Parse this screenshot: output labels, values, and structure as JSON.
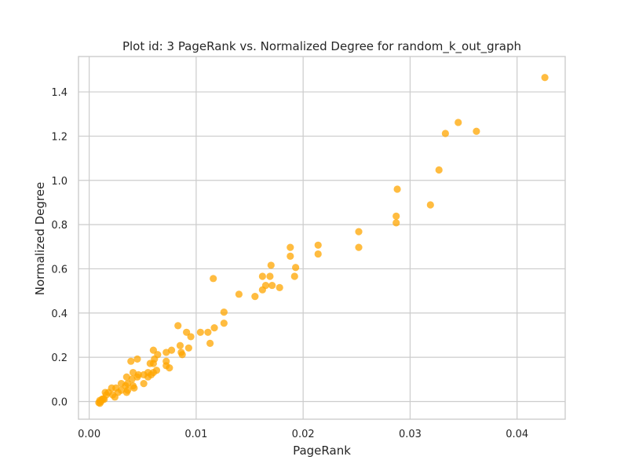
{
  "chart_data": {
    "type": "scatter",
    "title": "Plot id: 3 PageRank vs. Normalized Degree for random_k_out_graph",
    "xlabel": "PageRank",
    "ylabel": "Normalized Degree",
    "xlim": [
      -0.001,
      0.0445
    ],
    "ylim": [
      -0.08,
      1.56
    ],
    "xticks": [
      0.0,
      0.01,
      0.02,
      0.03,
      0.04
    ],
    "xtick_labels": [
      "0.00",
      "0.01",
      "0.02",
      "0.03",
      "0.04"
    ],
    "yticks": [
      0.0,
      0.2,
      0.4,
      0.6,
      0.8,
      1.0,
      1.2,
      1.4
    ],
    "ytick_labels": [
      "0.0",
      "0.2",
      "0.4",
      "0.6",
      "0.8",
      "1.0",
      "1.2",
      "1.4"
    ],
    "grid": true,
    "legend": "none",
    "point_color": "#FFA500",
    "points": [
      [
        0.0426,
        1.465
      ],
      [
        0.0345,
        1.262
      ],
      [
        0.0362,
        1.222
      ],
      [
        0.0333,
        1.212
      ],
      [
        0.0327,
        1.047
      ],
      [
        0.0288,
        0.96
      ],
      [
        0.0319,
        0.889
      ],
      [
        0.0287,
        0.838
      ],
      [
        0.0287,
        0.808
      ],
      [
        0.0252,
        0.768
      ],
      [
        0.0252,
        0.697
      ],
      [
        0.0214,
        0.707
      ],
      [
        0.0214,
        0.667
      ],
      [
        0.0188,
        0.697
      ],
      [
        0.0188,
        0.657
      ],
      [
        0.017,
        0.616
      ],
      [
        0.0193,
        0.606
      ],
      [
        0.0162,
        0.566
      ],
      [
        0.0169,
        0.566
      ],
      [
        0.0192,
        0.566
      ],
      [
        0.0116,
        0.556
      ],
      [
        0.0165,
        0.525
      ],
      [
        0.0171,
        0.525
      ],
      [
        0.0178,
        0.515
      ],
      [
        0.0162,
        0.505
      ],
      [
        0.014,
        0.485
      ],
      [
        0.0155,
        0.475
      ],
      [
        0.0126,
        0.404
      ],
      [
        0.0083,
        0.343
      ],
      [
        0.0126,
        0.354
      ],
      [
        0.0117,
        0.333
      ],
      [
        0.0104,
        0.313
      ],
      [
        0.0111,
        0.313
      ],
      [
        0.0091,
        0.313
      ],
      [
        0.0095,
        0.293
      ],
      [
        0.0113,
        0.263
      ],
      [
        0.0085,
        0.253
      ],
      [
        0.0093,
        0.242
      ],
      [
        0.006,
        0.232
      ],
      [
        0.0086,
        0.222
      ],
      [
        0.0077,
        0.232
      ],
      [
        0.0072,
        0.222
      ],
      [
        0.0064,
        0.212
      ],
      [
        0.0087,
        0.212
      ],
      [
        0.0045,
        0.192
      ],
      [
        0.0039,
        0.182
      ],
      [
        0.0061,
        0.192
      ],
      [
        0.0072,
        0.182
      ],
      [
        0.0057,
        0.172
      ],
      [
        0.006,
        0.172
      ],
      [
        0.0072,
        0.162
      ],
      [
        0.0075,
        0.152
      ],
      [
        0.0063,
        0.141
      ],
      [
        0.006,
        0.131
      ],
      [
        0.0055,
        0.131
      ],
      [
        0.0041,
        0.131
      ],
      [
        0.0046,
        0.121
      ],
      [
        0.0051,
        0.121
      ],
      [
        0.0058,
        0.121
      ],
      [
        0.0035,
        0.111
      ],
      [
        0.0045,
        0.111
      ],
      [
        0.0055,
        0.111
      ],
      [
        0.004,
        0.101
      ],
      [
        0.0036,
        0.081
      ],
      [
        0.003,
        0.081
      ],
      [
        0.0051,
        0.081
      ],
      [
        0.0041,
        0.071
      ],
      [
        0.0034,
        0.071
      ],
      [
        0.0042,
        0.061
      ],
      [
        0.0025,
        0.061
      ],
      [
        0.0021,
        0.061
      ],
      [
        0.0036,
        0.051
      ],
      [
        0.003,
        0.051
      ],
      [
        0.0015,
        0.041
      ],
      [
        0.0027,
        0.041
      ],
      [
        0.0035,
        0.041
      ],
      [
        0.0018,
        0.041
      ],
      [
        0.0022,
        0.03
      ],
      [
        0.0016,
        0.03
      ],
      [
        0.0024,
        0.02
      ],
      [
        0.0014,
        0.01
      ],
      [
        0.0012,
        0.01
      ],
      [
        0.001,
        0.005
      ],
      [
        0.0011,
        0.0
      ],
      [
        0.0013,
        0.012
      ],
      [
        0.0009,
        -0.005
      ],
      [
        0.001,
        -0.008
      ]
    ]
  }
}
